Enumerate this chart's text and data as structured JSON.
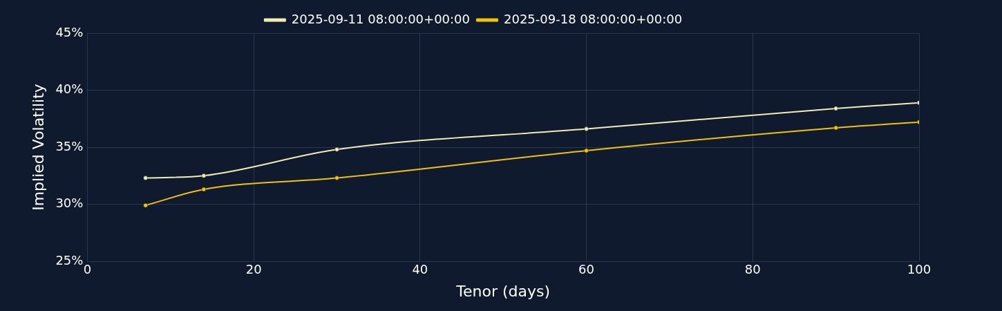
{
  "chart_data": {
    "type": "line",
    "xlabel": "Tenor (days)",
    "ylabel": "Implied Volatility",
    "xlim": [
      0,
      100
    ],
    "xticks": [
      0,
      20,
      40,
      60,
      80,
      100
    ],
    "ylim": [
      25,
      45
    ],
    "yticks": [
      {
        "value": 25,
        "label": "25%"
      },
      {
        "value": 30,
        "label": "30%"
      },
      {
        "value": 35,
        "label": "35%"
      },
      {
        "value": 40,
        "label": "40%"
      },
      {
        "value": 45,
        "label": "45%"
      }
    ],
    "series": [
      {
        "name": "2025-09-11 08:00:00+00:00",
        "color": "#f3eeb0",
        "x": [
          7,
          14,
          30,
          60,
          90,
          100
        ],
        "values": [
          32.3,
          32.5,
          34.8,
          36.6,
          38.4,
          38.9
        ]
      },
      {
        "name": "2025-09-18 08:00:00+00:00",
        "color": "#f5c400",
        "x": [
          7,
          14,
          30,
          60,
          90,
          100
        ],
        "values": [
          29.9,
          31.3,
          32.3,
          34.7,
          36.7,
          37.2
        ]
      }
    ],
    "grid": true,
    "legend": "top",
    "marker": "circle",
    "line_style": "solid"
  }
}
